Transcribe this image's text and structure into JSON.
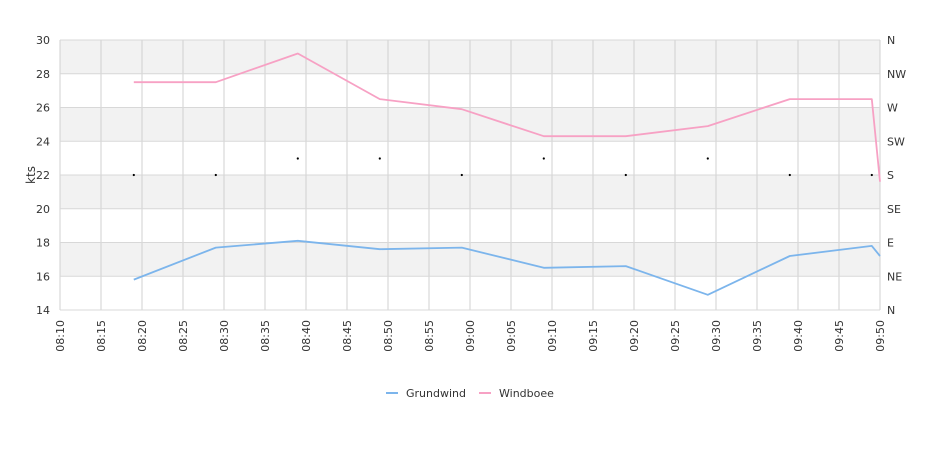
{
  "chart_data": {
    "type": "line",
    "x": [
      "08:19",
      "08:29",
      "08:39",
      "08:49",
      "08:59",
      "09:09",
      "09:19",
      "09:29",
      "09:39",
      "09:49",
      "09:50"
    ],
    "x_ticks": [
      "08:10",
      "08:15",
      "08:20",
      "08:25",
      "08:30",
      "08:35",
      "08:40",
      "08:45",
      "08:50",
      "08:55",
      "09:00",
      "09:05",
      "09:10",
      "09:15",
      "09:20",
      "09:25",
      "09:30",
      "09:35",
      "09:40",
      "09:45",
      "09:50"
    ],
    "xlim": [
      "08:10",
      "09:50"
    ],
    "ylabel": "kts",
    "ylim": [
      14,
      30
    ],
    "y_ticks": [
      "14",
      "16",
      "18",
      "20",
      "22",
      "24",
      "26",
      "28",
      "30"
    ],
    "right_axis": {
      "ticks": [
        "N",
        "NE",
        "E",
        "SE",
        "S",
        "SW",
        "W",
        "NW",
        "N"
      ],
      "range_degrees": [
        0,
        360
      ]
    },
    "series": [
      {
        "name": "Grundwind",
        "color": "#7cb5ec",
        "values": [
          15.8,
          17.7,
          18.1,
          17.6,
          17.7,
          16.5,
          16.6,
          14.9,
          17.2,
          17.8,
          17.2
        ]
      },
      {
        "name": "Windboee",
        "color": "#f7a1c4",
        "values": [
          27.5,
          27.5,
          29.2,
          26.5,
          25.9,
          24.3,
          24.3,
          24.9,
          26.5,
          26.5,
          21.6
        ]
      }
    ],
    "direction": {
      "x": [
        "08:19",
        "08:29",
        "08:39",
        "08:49",
        "08:59",
        "09:09",
        "09:19",
        "09:29",
        "09:39",
        "09:49"
      ],
      "degrees": [
        180,
        180,
        202,
        202,
        180,
        202,
        180,
        202,
        180,
        180
      ]
    },
    "grid": true,
    "legend": "bottom-center"
  }
}
